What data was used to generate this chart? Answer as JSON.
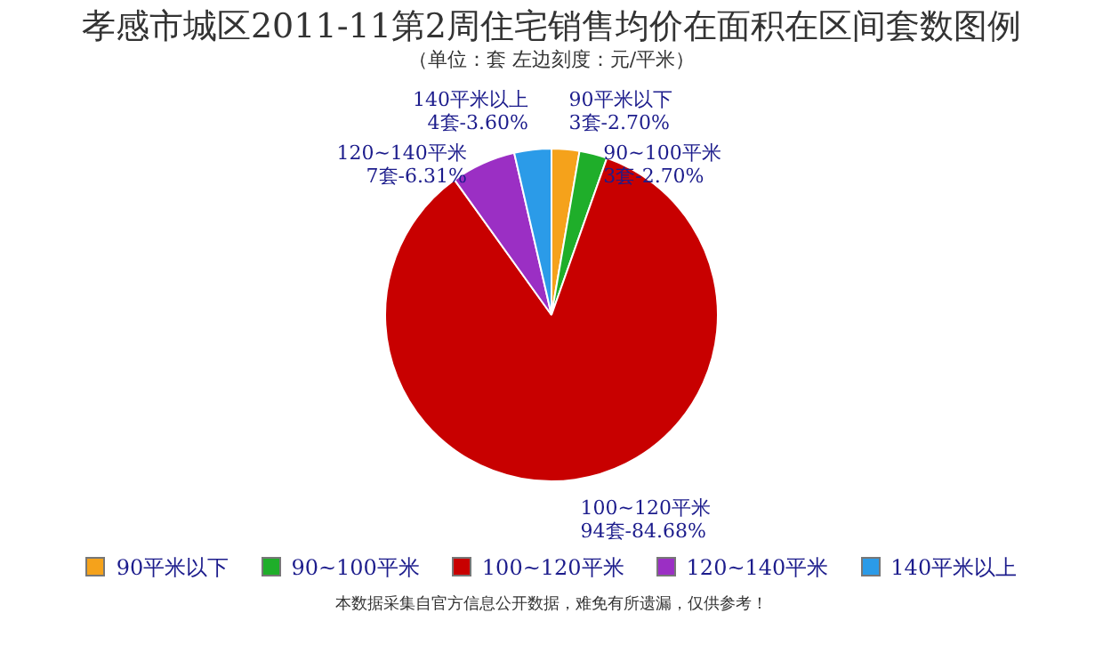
{
  "chart_data": {
    "type": "pie",
    "title": "孝感市城区2011-11第2周住宅销售均价在面积在区间套数图例",
    "subtitle": "（单位：套 左边刻度：元/平米）",
    "categories": [
      "90平米以下",
      "90~100平米",
      "100~120平米",
      "120~140平米",
      "140平米以上"
    ],
    "values": [
      3,
      3,
      94,
      7,
      4
    ],
    "value_labels": [
      "3套-2.70%",
      "3套-2.70%",
      "94套-84.68%",
      "7套-6.31%",
      "4套-3.60%"
    ],
    "colors": [
      "#f5a21b",
      "#1fae2a",
      "#c80000",
      "#9b2fc4",
      "#2b9be8"
    ],
    "legend": "bottom",
    "annotations": [
      "本数据采集自官方信息公开数据，难免有所遗漏，仅供参考！"
    ]
  }
}
